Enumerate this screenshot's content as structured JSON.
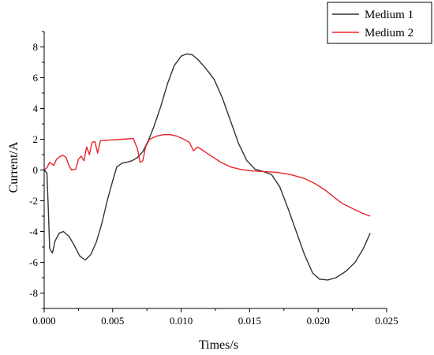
{
  "colors": {
    "medium1": "#333333",
    "medium2": "#e8252c",
    "axis": "#000000"
  },
  "chart_data": {
    "type": "line",
    "title": "",
    "xlabel": "Times/s",
    "ylabel": "Current/A",
    "xlim": [
      0,
      0.025
    ],
    "ylim": [
      -9,
      9
    ],
    "xticks": [
      {
        "value": 0.0,
        "label": "0.000"
      },
      {
        "value": 0.005,
        "label": "0.005"
      },
      {
        "value": 0.01,
        "label": "0.010"
      },
      {
        "value": 0.015,
        "label": "0.015"
      },
      {
        "value": 0.02,
        "label": "0.020"
      },
      {
        "value": 0.025,
        "label": "0.025"
      }
    ],
    "yticks": [
      {
        "value": -8,
        "label": "-8"
      },
      {
        "value": -6,
        "label": "-6"
      },
      {
        "value": -4,
        "label": "-4"
      },
      {
        "value": -2,
        "label": "-2"
      },
      {
        "value": 0,
        "label": "0"
      },
      {
        "value": 2,
        "label": "2"
      },
      {
        "value": 4,
        "label": "4"
      },
      {
        "value": 6,
        "label": "6"
      },
      {
        "value": 8,
        "label": "8"
      }
    ],
    "legend_position": "top-right",
    "series": [
      {
        "name": "Medium 1",
        "color": "#333333",
        "points": [
          [
            0.0,
            0.0
          ],
          [
            0.0002,
            -0.2
          ],
          [
            0.0003,
            -2.5
          ],
          [
            0.0004,
            -5.1
          ],
          [
            0.0006,
            -5.4
          ],
          [
            0.0008,
            -4.6
          ],
          [
            0.0011,
            -4.1
          ],
          [
            0.0014,
            -4.0
          ],
          [
            0.0018,
            -4.3
          ],
          [
            0.0022,
            -4.9
          ],
          [
            0.0026,
            -5.6
          ],
          [
            0.003,
            -5.85
          ],
          [
            0.0034,
            -5.5
          ],
          [
            0.0038,
            -4.7
          ],
          [
            0.0042,
            -3.5
          ],
          [
            0.0046,
            -2.0
          ],
          [
            0.005,
            -0.7
          ],
          [
            0.0053,
            0.2
          ],
          [
            0.0057,
            0.45
          ],
          [
            0.006,
            0.5
          ],
          [
            0.0064,
            0.6
          ],
          [
            0.0068,
            0.8
          ],
          [
            0.0072,
            1.2
          ],
          [
            0.0076,
            1.9
          ],
          [
            0.008,
            2.8
          ],
          [
            0.0085,
            4.1
          ],
          [
            0.009,
            5.6
          ],
          [
            0.0095,
            6.8
          ],
          [
            0.01,
            7.4
          ],
          [
            0.0104,
            7.55
          ],
          [
            0.0108,
            7.5
          ],
          [
            0.0112,
            7.2
          ],
          [
            0.0118,
            6.6
          ],
          [
            0.0124,
            5.9
          ],
          [
            0.013,
            4.7
          ],
          [
            0.0136,
            3.2
          ],
          [
            0.0142,
            1.7
          ],
          [
            0.0148,
            0.6
          ],
          [
            0.0154,
            0.05
          ],
          [
            0.016,
            -0.1
          ],
          [
            0.0166,
            -0.3
          ],
          [
            0.0172,
            -1.1
          ],
          [
            0.0178,
            -2.5
          ],
          [
            0.0184,
            -4.0
          ],
          [
            0.019,
            -5.5
          ],
          [
            0.0196,
            -6.7
          ],
          [
            0.0201,
            -7.1
          ],
          [
            0.0207,
            -7.15
          ],
          [
            0.0213,
            -7.0
          ],
          [
            0.022,
            -6.6
          ],
          [
            0.0227,
            -6.0
          ],
          [
            0.0233,
            -5.1
          ],
          [
            0.0238,
            -4.1
          ]
        ]
      },
      {
        "name": "Medium 2",
        "color": "#e8252c",
        "points": [
          [
            0.0,
            0.0
          ],
          [
            0.0002,
            0.15
          ],
          [
            0.0004,
            0.5
          ],
          [
            0.0007,
            0.3
          ],
          [
            0.0009,
            0.7
          ],
          [
            0.0012,
            0.9
          ],
          [
            0.0014,
            0.95
          ],
          [
            0.0016,
            0.8
          ],
          [
            0.0018,
            0.3
          ],
          [
            0.002,
            0.0
          ],
          [
            0.0023,
            0.05
          ],
          [
            0.0025,
            0.7
          ],
          [
            0.0027,
            0.9
          ],
          [
            0.0029,
            0.6
          ],
          [
            0.0031,
            1.5
          ],
          [
            0.0033,
            1.0
          ],
          [
            0.0035,
            1.8
          ],
          [
            0.0037,
            1.85
          ],
          [
            0.0039,
            1.1
          ],
          [
            0.0041,
            1.9
          ],
          [
            0.0048,
            1.95
          ],
          [
            0.0057,
            2.0
          ],
          [
            0.0065,
            2.05
          ],
          [
            0.0068,
            1.4
          ],
          [
            0.007,
            0.5
          ],
          [
            0.0072,
            0.6
          ],
          [
            0.0074,
            1.5
          ],
          [
            0.0077,
            2.0
          ],
          [
            0.0082,
            2.2
          ],
          [
            0.0087,
            2.3
          ],
          [
            0.0092,
            2.3
          ],
          [
            0.0097,
            2.2
          ],
          [
            0.0102,
            2.0
          ],
          [
            0.0106,
            1.8
          ],
          [
            0.0109,
            1.25
          ],
          [
            0.0112,
            1.5
          ],
          [
            0.0117,
            1.2
          ],
          [
            0.0123,
            0.85
          ],
          [
            0.0129,
            0.5
          ],
          [
            0.0136,
            0.2
          ],
          [
            0.0143,
            0.05
          ],
          [
            0.015,
            -0.05
          ],
          [
            0.016,
            -0.1
          ],
          [
            0.017,
            -0.15
          ],
          [
            0.018,
            -0.3
          ],
          [
            0.019,
            -0.55
          ],
          [
            0.0198,
            -0.9
          ],
          [
            0.0205,
            -1.3
          ],
          [
            0.0212,
            -1.8
          ],
          [
            0.0218,
            -2.2
          ],
          [
            0.0225,
            -2.5
          ],
          [
            0.0232,
            -2.8
          ],
          [
            0.0238,
            -3.0
          ]
        ]
      }
    ]
  }
}
